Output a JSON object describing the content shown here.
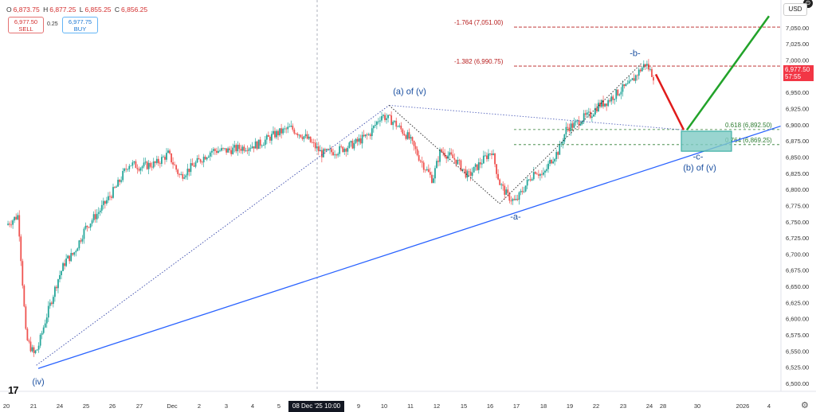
{
  "header": {
    "ohlc": [
      {
        "key": "O",
        "value": "6,873.75"
      },
      {
        "key": "H",
        "value": "6,877.25"
      },
      {
        "key": "L",
        "value": "6,855.25"
      },
      {
        "key": "C",
        "value": "6,856.25"
      }
    ],
    "sell_price": "6,977.50",
    "sell_label": "SELL",
    "spread": "0.25",
    "buy_price": "6,977.75",
    "buy_label": "BUY",
    "currency": "USD"
  },
  "last_price": {
    "value": "6,977.50",
    "countdown": "57:55"
  },
  "date_highlight": "08 Dec '25  10:00",
  "logo_text": "17",
  "colors": {
    "up": "#26a69a",
    "down": "#ef5350",
    "trendline": "#2962ff",
    "wave_label": "#1a4fa0",
    "impulse_up": "#22a32a",
    "impulse_down": "#e01b1b",
    "target_box": "#80cbc4",
    "fib_dark": "#b71c1c",
    "fib_green": "#2e7d32"
  },
  "chart_data": {
    "type": "candlestick",
    "symbol_price_axis": {
      "ylim": [
        6495,
        7090
      ]
    },
    "y_ticks": [
      "7,050.00",
      "7,025.00",
      "7,000.00",
      "6,975.00",
      "6,950.00",
      "6,925.00",
      "6,900.00",
      "6,875.00",
      "6,850.00",
      "6,825.00",
      "6,800.00",
      "6,775.00",
      "6,750.00",
      "6,725.00",
      "6,700.00",
      "6,675.00",
      "6,650.00",
      "6,625.00",
      "6,600.00",
      "6,575.00",
      "6,550.00",
      "6,525.00",
      "6,500.00"
    ],
    "x_ticks": [
      "20",
      "21",
      "24",
      "25",
      "26",
      "27",
      "Dec",
      "2",
      "3",
      "4",
      "5",
      "8",
      "9",
      "10",
      "11",
      "12",
      "15",
      "16",
      "17",
      "18",
      "19",
      "22",
      "23",
      "24",
      "28",
      "30",
      "2026",
      "4"
    ],
    "price_path": [
      [
        0,
        6745
      ],
      [
        1.5,
        6760
      ],
      [
        2.5,
        6570
      ],
      [
        3.5,
        6545
      ],
      [
        4,
        6555
      ],
      [
        5,
        6600
      ],
      [
        6.5,
        6660
      ],
      [
        7.5,
        6690
      ],
      [
        8.5,
        6700
      ],
      [
        10,
        6740
      ],
      [
        12,
        6770
      ],
      [
        14,
        6805
      ],
      [
        15.5,
        6840
      ],
      [
        17,
        6835
      ],
      [
        19,
        6840
      ],
      [
        20.5,
        6855
      ],
      [
        22,
        6820
      ],
      [
        24,
        6840
      ],
      [
        26,
        6860
      ],
      [
        28,
        6860
      ],
      [
        30,
        6865
      ],
      [
        32,
        6870
      ],
      [
        34,
        6885
      ],
      [
        36,
        6895
      ],
      [
        38,
        6880
      ],
      [
        40,
        6855
      ],
      [
        42,
        6860
      ],
      [
        44,
        6870
      ],
      [
        46,
        6885
      ],
      [
        47.5,
        6915
      ],
      [
        49,
        6905
      ],
      [
        51,
        6880
      ],
      [
        52.5,
        6845
      ],
      [
        54,
        6815
      ],
      [
        55,
        6860
      ],
      [
        57,
        6845
      ],
      [
        58.5,
        6820
      ],
      [
        60,
        6840
      ],
      [
        61.5,
        6860
      ],
      [
        62.5,
        6810
      ],
      [
        63.5,
        6790
      ],
      [
        64.5,
        6780
      ],
      [
        65.5,
        6800
      ],
      [
        67,
        6830
      ],
      [
        68,
        6820
      ],
      [
        69,
        6845
      ],
      [
        70,
        6860
      ],
      [
        71,
        6895
      ],
      [
        72,
        6900
      ],
      [
        73,
        6910
      ],
      [
        74,
        6915
      ],
      [
        75,
        6930
      ],
      [
        76,
        6935
      ],
      [
        77,
        6945
      ],
      [
        78,
        6955
      ],
      [
        79,
        6962
      ],
      [
        80,
        6980
      ],
      [
        81,
        6995
      ],
      [
        82,
        6975
      ]
    ],
    "levels": [
      {
        "label": "-1.764 (7,051.00)",
        "value": 7051
      },
      {
        "label": "-1.382 (6,990.75)",
        "value": 6990.75
      },
      {
        "label": "0.618 (6,892.50)",
        "value": 6892.5
      },
      {
        "label": "0.764 (6,869.25)",
        "value": 6869.25
      }
    ],
    "wave_labels": [
      {
        "text": "(iv)",
        "value": 6525
      },
      {
        "text": "(a) of (v)",
        "value": 6935
      },
      {
        "text": "-a-",
        "value": 6773
      },
      {
        "text": "-b-",
        "value": 6995
      },
      {
        "text": "-c-",
        "value": 6862
      },
      {
        "text": "(b) of (v)",
        "value": 6862
      }
    ]
  }
}
